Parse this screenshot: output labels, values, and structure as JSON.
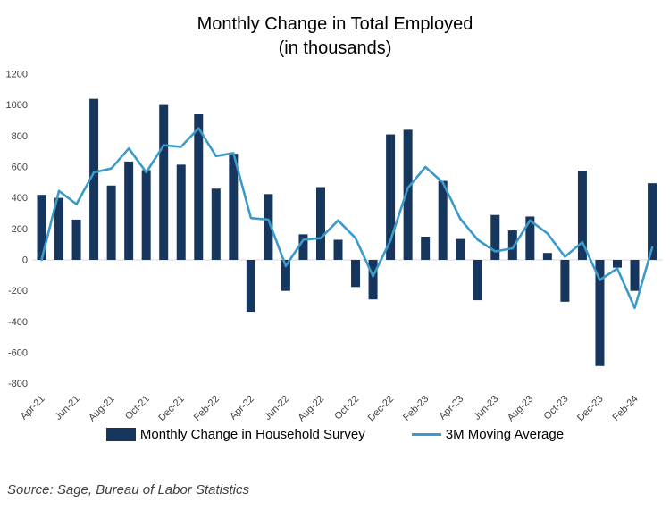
{
  "title": {
    "line1": "Monthly Change in Total Employed",
    "line2": "(in thousands)"
  },
  "source_note": "Source: Sage, Bureau of Labor Statistics",
  "colors": {
    "bar": "#17365d",
    "line": "#3a9aca",
    "axis_line": "#d9d9d9",
    "tick_text": "#404040",
    "title_text": "#000000"
  },
  "legend": {
    "bar_label": "Monthly Change in Household Survey",
    "line_label": "3M Moving Average"
  },
  "chart_data": {
    "type": "bar",
    "title": "Monthly Change in Total Employed (in thousands)",
    "xlabel": "",
    "ylabel": "",
    "ylim": [
      -800,
      1200
    ],
    "y_ticks": [
      1200,
      1000,
      800,
      600,
      400,
      200,
      0,
      -200,
      -400,
      -600,
      -800
    ],
    "grid": false,
    "legend_position": "bottom",
    "x_tick_labels_shown": [
      "Apr-21",
      "Jun-21",
      "Aug-21",
      "Oct-21",
      "Dec-21",
      "Feb-22",
      "Apr-22",
      "Jun-22",
      "Aug-22",
      "Oct-22",
      "Dec-22",
      "Feb-23",
      "Apr-23",
      "Jun-23",
      "Aug-23",
      "Oct-23",
      "Dec-23",
      "Feb-24"
    ],
    "categories": [
      "Apr-21",
      "May-21",
      "Jun-21",
      "Jul-21",
      "Aug-21",
      "Sep-21",
      "Oct-21",
      "Nov-21",
      "Dec-21",
      "Jan-22",
      "Feb-22",
      "Mar-22",
      "Apr-22",
      "May-22",
      "Jun-22",
      "Jul-22",
      "Aug-22",
      "Sep-22",
      "Oct-22",
      "Nov-22",
      "Dec-22",
      "Jan-23",
      "Feb-23",
      "Mar-23",
      "Apr-23",
      "May-23",
      "Jun-23",
      "Jul-23",
      "Aug-23",
      "Sep-23",
      "Oct-23",
      "Nov-23",
      "Dec-23",
      "Jan-24",
      "Feb-24",
      "Mar-24"
    ],
    "series": [
      {
        "name": "Monthly Change in Household Survey",
        "type": "bar",
        "color": "#17365d",
        "values": [
          420,
          400,
          260,
          1040,
          480,
          635,
          580,
          1000,
          615,
          940,
          460,
          685,
          -335,
          425,
          -200,
          165,
          470,
          130,
          -175,
          -255,
          810,
          840,
          150,
          510,
          135,
          -260,
          290,
          190,
          280,
          45,
          -270,
          575,
          -685,
          -50,
          -200,
          495
        ]
      },
      {
        "name": "3M Moving Average",
        "type": "line",
        "color": "#3a9aca",
        "values": [
          0,
          445,
          360,
          565,
          590,
          720,
          565,
          740,
          730,
          850,
          670,
          690,
          270,
          260,
          -40,
          130,
          140,
          255,
          140,
          -105,
          125,
          465,
          600,
          500,
          265,
          130,
          55,
          75,
          255,
          170,
          20,
          115,
          -130,
          -55,
          -310,
          80
        ]
      }
    ]
  }
}
